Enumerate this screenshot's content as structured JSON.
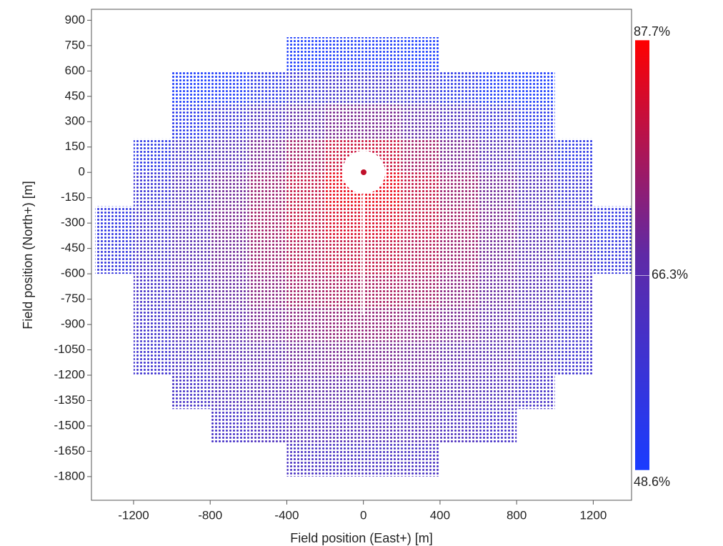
{
  "chart_data": {
    "type": "scatter",
    "x_label": "Field position (East+) [m]",
    "y_label": "Field position (North+) [m]",
    "xlim": [
      -1420,
      1400
    ],
    "ylim": [
      -1940,
      965
    ],
    "xticks": [
      -1200,
      -800,
      -400,
      0,
      400,
      800,
      1200
    ],
    "yticks": [
      900,
      750,
      600,
      450,
      300,
      150,
      0,
      -150,
      -300,
      -450,
      -600,
      -750,
      -900,
      -1050,
      -1200,
      -1350,
      -1500,
      -1650,
      -1800
    ],
    "colorbar": {
      "lim": [
        48.6,
        87.7
      ],
      "colors": [
        "#1a3cff",
        "#5f2aa6",
        "#ff0000"
      ],
      "ticks": [
        {
          "value": 87.7,
          "label": "87.7%"
        },
        {
          "value": 66.3,
          "label": "66.3%"
        },
        {
          "value": 48.6,
          "label": "48.6%"
        }
      ]
    },
    "rows": [
      {
        "y": 700,
        "x": [
          -300,
          -100,
          100,
          300
        ],
        "values": [
          49,
          50,
          50,
          49
        ]
      },
      {
        "y": 500,
        "x": [
          -900,
          -700,
          -500,
          -300,
          -100,
          100,
          300,
          500,
          700,
          900
        ],
        "values": [
          49,
          50,
          54,
          58,
          60,
          60,
          58,
          54,
          50,
          49
        ]
      },
      {
        "y": 300,
        "x": [
          -900,
          -700,
          -500,
          -300,
          -100,
          100,
          300,
          500,
          700,
          900
        ],
        "values": [
          53,
          58,
          63,
          68,
          71,
          71,
          68,
          63,
          58,
          53
        ]
      },
      {
        "y": 100,
        "x": [
          -1100,
          -900,
          -700,
          -500,
          -300,
          -100,
          100,
          300,
          500,
          700,
          900,
          1100
        ],
        "values": [
          54,
          60,
          65,
          71,
          76,
          81,
          81,
          76,
          71,
          65,
          60,
          54
        ]
      },
      {
        "y": -100,
        "x": [
          -1100,
          -900,
          -700,
          -500,
          -300,
          -100,
          100,
          300,
          500,
          700,
          900,
          1100
        ],
        "values": [
          58,
          64,
          70,
          75,
          80,
          85,
          85,
          80,
          75,
          70,
          64,
          58
        ]
      },
      {
        "y": -300,
        "x": [
          -1300,
          -1100,
          -900,
          -700,
          -500,
          -300,
          -100,
          100,
          300,
          500,
          700,
          900,
          1100,
          1300
        ],
        "values": [
          55,
          60,
          65,
          71,
          76,
          80,
          83,
          83,
          80,
          76,
          71,
          65,
          60,
          55
        ]
      },
      {
        "y": -500,
        "x": [
          -1300,
          -1100,
          -900,
          -700,
          -500,
          -300,
          -100,
          100,
          300,
          500,
          700,
          900,
          1100,
          1300
        ],
        "values": [
          56,
          61,
          66,
          70,
          75,
          78,
          80,
          80,
          78,
          75,
          70,
          66,
          61,
          56
        ]
      },
      {
        "y": -700,
        "x": [
          -1100,
          -900,
          -700,
          -500,
          -300,
          -100,
          100,
          300,
          500,
          700,
          900,
          1100
        ],
        "values": [
          61,
          65,
          69,
          73,
          76,
          77,
          77,
          76,
          73,
          69,
          65,
          61
        ]
      },
      {
        "y": -900,
        "x": [
          -1100,
          -900,
          -700,
          -500,
          -300,
          -100,
          100,
          300,
          500,
          700,
          900,
          1100
        ],
        "values": [
          60,
          64,
          68,
          71,
          73,
          74,
          74,
          73,
          71,
          68,
          64,
          60
        ]
      },
      {
        "y": -1100,
        "x": [
          -1100,
          -900,
          -700,
          -500,
          -300,
          -100,
          100,
          300,
          500,
          700,
          900,
          1100
        ],
        "values": [
          59,
          62,
          66,
          68,
          70,
          71,
          71,
          70,
          68,
          66,
          62,
          59
        ]
      },
      {
        "y": -1300,
        "x": [
          -900,
          -700,
          -500,
          -300,
          -100,
          100,
          300,
          500,
          700,
          900
        ],
        "values": [
          61,
          64,
          66,
          68,
          68,
          68,
          68,
          66,
          64,
          61
        ]
      },
      {
        "y": -1500,
        "x": [
          -700,
          -500,
          -300,
          -100,
          100,
          300,
          500,
          700
        ],
        "values": [
          61,
          63,
          65,
          65,
          65,
          65,
          63,
          61
        ]
      },
      {
        "y": -1700,
        "x": [
          -300,
          -100,
          100,
          300
        ],
        "values": [
          62,
          62,
          62,
          62
        ]
      }
    ]
  }
}
